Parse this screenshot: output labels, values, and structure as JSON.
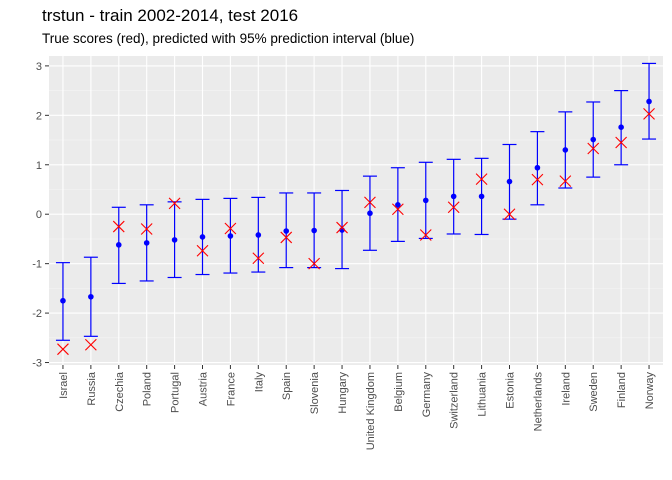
{
  "chart_data": {
    "type": "scatter",
    "title": "trstun - train 2002-2014, test 2016",
    "subtitle": "True scores (red), predicted with 95% prediction interval (blue)",
    "xlabel": "",
    "ylabel": "",
    "ylim": [
      -3.05,
      3.2
    ],
    "yticks": [
      -3,
      -2,
      -1,
      0,
      1,
      2,
      3
    ],
    "grid": true,
    "categories": [
      "Israel",
      "Russia",
      "Czechia",
      "Poland",
      "Portugal",
      "Austria",
      "France",
      "Italy",
      "Spain",
      "Slovenia",
      "Hungary",
      "United Kingdom",
      "Belgium",
      "Germany",
      "Switzerland",
      "Lithuania",
      "Estonia",
      "Netherlands",
      "Ireland",
      "Sweden",
      "Finland",
      "Norway"
    ],
    "predicted": [
      -1.75,
      -1.67,
      -0.62,
      -0.58,
      -0.52,
      -0.46,
      -0.44,
      -0.42,
      -0.34,
      -0.33,
      -0.32,
      0.02,
      0.19,
      0.28,
      0.36,
      0.36,
      0.66,
      0.94,
      1.3,
      1.51,
      1.76,
      2.28
    ],
    "lower": [
      -2.55,
      -2.47,
      -1.4,
      -1.35,
      -1.28,
      -1.22,
      -1.19,
      -1.17,
      -1.08,
      -1.08,
      -1.1,
      -0.73,
      -0.55,
      -0.49,
      -0.4,
      -0.41,
      -0.1,
      0.19,
      0.53,
      0.75,
      1.0,
      1.52
    ],
    "upper": [
      -0.98,
      -0.87,
      0.14,
      0.19,
      0.25,
      0.3,
      0.32,
      0.34,
      0.43,
      0.43,
      0.48,
      0.77,
      0.94,
      1.05,
      1.11,
      1.13,
      1.41,
      1.67,
      2.07,
      2.27,
      2.5,
      3.05
    ],
    "true": [
      -2.73,
      -2.64,
      -0.25,
      -0.3,
      0.22,
      -0.74,
      -0.29,
      -0.89,
      -0.47,
      -1.0,
      -0.27,
      0.24,
      0.1,
      -0.42,
      0.14,
      0.71,
      0.0,
      0.7,
      0.67,
      1.33,
      1.45,
      2.03
    ],
    "colors": {
      "predicted": "#0000ff",
      "true": "#ff0000",
      "panel": "#ebebeb",
      "grid_major": "#ffffff",
      "grid_minor": "#f5f5f5"
    }
  }
}
